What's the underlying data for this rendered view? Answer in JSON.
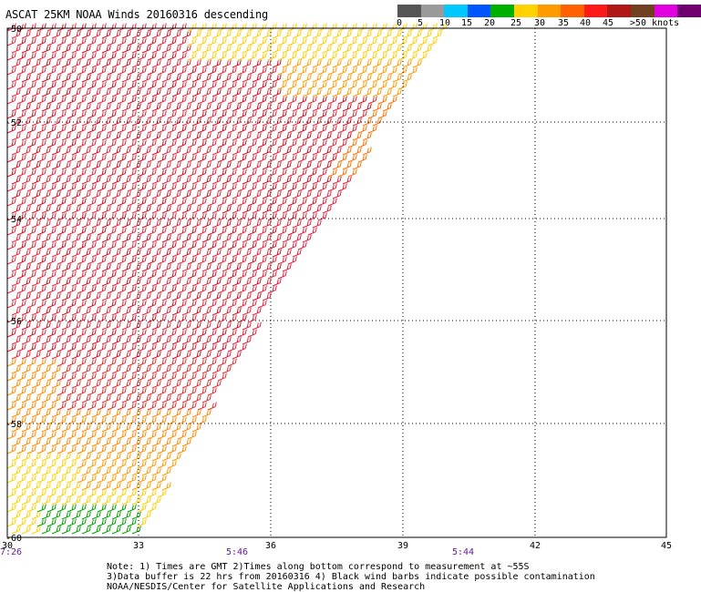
{
  "title": "ASCAT 25KM NOAA Winds 20160316 descending",
  "legend": {
    "colors": [
      "#555555",
      "#9a9a9a",
      "#00c8ff",
      "#0055ff",
      "#00b000",
      "#ffd200",
      "#ff9a00",
      "#ff6000",
      "#ff1a1a",
      "#b01818",
      "#704020",
      "#e000e0",
      "#700070"
    ],
    "labels": [
      "0",
      "5",
      "10",
      "15",
      "20",
      "25",
      "30",
      "35",
      "40",
      "45",
      ">50 knots"
    ]
  },
  "axes": {
    "lon_ticks": [
      "30",
      "33",
      "36",
      "39",
      "42",
      "45"
    ],
    "lat_ticks": [
      "-50",
      "-52",
      "-54",
      "-56",
      "-58",
      "-60"
    ],
    "times": [
      "7:26",
      "5:46",
      "5:44"
    ]
  },
  "notes": [
    "Note: 1) Times are GMT 2)Times along bottom correspond to measurement at ~55S",
    "3)Data buffer is 22 hrs from 20160316 4) Black wind barbs indicate possible contamination",
    "NOAA/NESDIS/Center for Satellite Applications and Research"
  ]
}
